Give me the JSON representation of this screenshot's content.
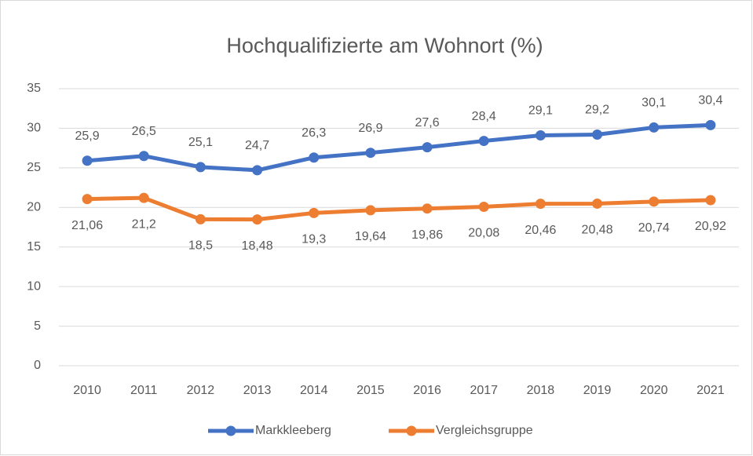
{
  "chart_data": {
    "type": "line",
    "title": "Hochqualifizierte am Wohnort (%)",
    "categories": [
      "2010",
      "2011",
      "2012",
      "2013",
      "2014",
      "2015",
      "2016",
      "2017",
      "2018",
      "2019",
      "2020",
      "2021"
    ],
    "series": [
      {
        "name": "Markkleeberg",
        "color": "#4472c4",
        "values": [
          25.9,
          26.5,
          25.1,
          24.7,
          26.3,
          26.9,
          27.6,
          28.4,
          29.1,
          29.2,
          30.1,
          30.4
        ],
        "value_labels": [
          "25,9",
          "26,5",
          "25,1",
          "24,7",
          "26,3",
          "26,9",
          "27,6",
          "28,4",
          "29,1",
          "29,2",
          "30,1",
          "30,4"
        ]
      },
      {
        "name": "Vergleichsgruppe",
        "color": "#ed7d31",
        "values": [
          21.06,
          21.2,
          18.5,
          18.48,
          19.3,
          19.64,
          19.86,
          20.08,
          20.46,
          20.48,
          20.74,
          20.92
        ],
        "value_labels": [
          "21,06",
          "21,2",
          "18,5",
          "18,48",
          "19,3",
          "19,64",
          "19,86",
          "20,08",
          "20,46",
          "20,48",
          "20,74",
          "20,92"
        ]
      }
    ],
    "ylim": [
      0,
      35
    ],
    "yticks": [
      0,
      5,
      10,
      15,
      20,
      25,
      30,
      35
    ],
    "grid": true,
    "legend": "bottom"
  }
}
